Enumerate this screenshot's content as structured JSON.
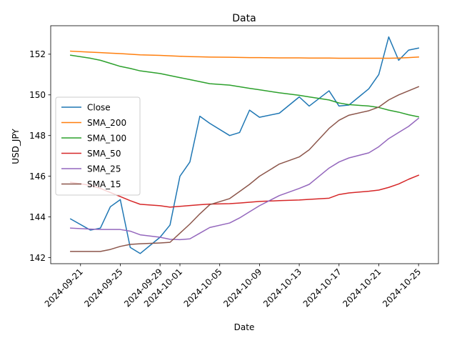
{
  "chart_data": {
    "type": "line",
    "title": "Data",
    "xlabel": "Date",
    "ylabel": "USD_JPY",
    "x": [
      "2024-09-20",
      "2024-09-22",
      "2024-09-23",
      "2024-09-24",
      "2024-09-25",
      "2024-09-26",
      "2024-09-27",
      "2024-09-29",
      "2024-09-30",
      "2024-10-01",
      "2024-10-02",
      "2024-10-03",
      "2024-10-04",
      "2024-10-06",
      "2024-10-07",
      "2024-10-08",
      "2024-10-09",
      "2024-10-11",
      "2024-10-13",
      "2024-10-14",
      "2024-10-16",
      "2024-10-17",
      "2024-10-18",
      "2024-10-20",
      "2024-10-21",
      "2024-10-22",
      "2024-10-23",
      "2024-10-24",
      "2024-10-25"
    ],
    "x_ticks": [
      "2024-09-21",
      "2024-09-25",
      "2024-09-29",
      "2024-10-01",
      "2024-10-05",
      "2024-10-09",
      "2024-10-13",
      "2024-10-17",
      "2024-10-21",
      "2024-10-25"
    ],
    "xlim": [
      "2024-09-18",
      "2024-10-27"
    ],
    "y_ticks": [
      142,
      144,
      146,
      148,
      150,
      152
    ],
    "ylim": [
      141.7,
      153.4
    ],
    "grid": false,
    "legend_position": "center-left",
    "series": [
      {
        "name": "Close",
        "color": "#1f77b4",
        "values": [
          143.9,
          143.35,
          143.45,
          144.5,
          144.85,
          142.5,
          142.2,
          143.0,
          143.6,
          146.0,
          146.7,
          148.95,
          148.6,
          148.0,
          148.15,
          149.25,
          148.9,
          149.1,
          149.9,
          149.45,
          150.2,
          149.45,
          149.5,
          150.3,
          151.0,
          152.85,
          151.7,
          152.2,
          152.3
        ]
      },
      {
        "name": "SMA_200",
        "color": "#ff7f0e",
        "values": [
          152.15,
          152.1,
          152.08,
          152.05,
          152.03,
          152.0,
          151.97,
          151.94,
          151.92,
          151.9,
          151.88,
          151.87,
          151.86,
          151.85,
          151.84,
          151.83,
          151.83,
          151.82,
          151.82,
          151.81,
          151.81,
          151.8,
          151.8,
          151.8,
          151.8,
          151.8,
          151.81,
          151.83,
          151.86
        ]
      },
      {
        "name": "SMA_100",
        "color": "#2ca02c",
        "values": [
          151.95,
          151.8,
          151.7,
          151.55,
          151.4,
          151.3,
          151.18,
          151.05,
          150.95,
          150.85,
          150.75,
          150.65,
          150.55,
          150.48,
          150.4,
          150.32,
          150.25,
          150.1,
          149.98,
          149.9,
          149.75,
          149.6,
          149.52,
          149.45,
          149.38,
          149.25,
          149.15,
          149.02,
          148.92
        ]
      },
      {
        "name": "SMA_50",
        "color": "#d62728",
        "values": [
          145.7,
          145.55,
          145.4,
          145.2,
          145.0,
          144.8,
          144.62,
          144.55,
          144.48,
          144.52,
          144.56,
          144.6,
          144.63,
          144.65,
          144.68,
          144.72,
          144.76,
          144.8,
          144.83,
          144.86,
          144.92,
          145.1,
          145.18,
          145.26,
          145.32,
          145.45,
          145.62,
          145.85,
          146.05
        ]
      },
      {
        "name": "SMA_25",
        "color": "#9467bd",
        "values": [
          143.45,
          143.4,
          143.38,
          143.38,
          143.38,
          143.3,
          143.12,
          143.0,
          142.9,
          142.88,
          142.92,
          143.2,
          143.48,
          143.7,
          143.95,
          144.25,
          144.55,
          145.05,
          145.4,
          145.6,
          146.4,
          146.7,
          146.9,
          147.15,
          147.45,
          147.85,
          148.15,
          148.45,
          148.85
        ]
      },
      {
        "name": "SMA_15",
        "color": "#8c564b",
        "values": [
          142.3,
          142.3,
          142.3,
          142.4,
          142.55,
          142.65,
          142.68,
          142.72,
          142.75,
          143.2,
          143.65,
          144.15,
          144.6,
          144.9,
          145.25,
          145.6,
          146.0,
          146.6,
          146.95,
          147.3,
          148.35,
          148.75,
          149.0,
          149.22,
          149.4,
          149.75,
          150.0,
          150.2,
          150.4
        ]
      }
    ]
  }
}
